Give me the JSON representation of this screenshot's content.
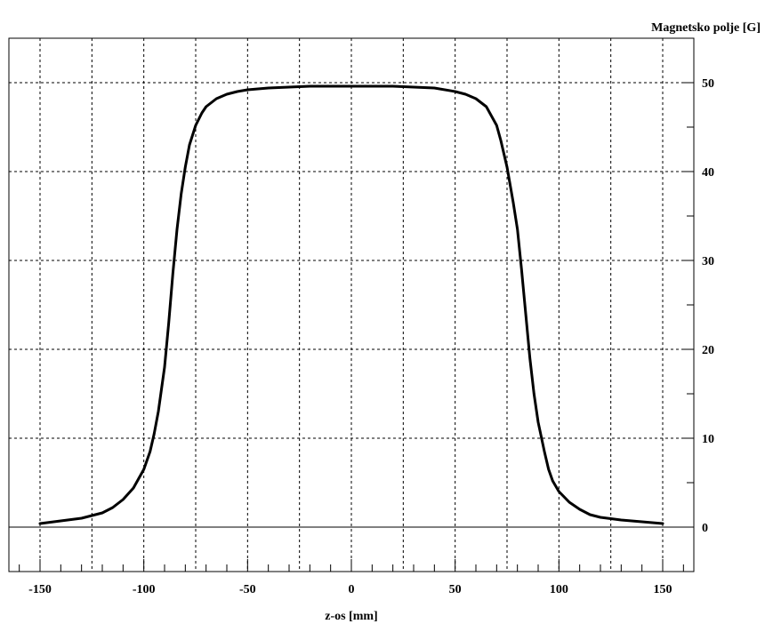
{
  "chart_data": {
    "type": "line",
    "title": "",
    "xlabel": "z-os [mm]",
    "ylabel": "Magnetsko polje [G]",
    "xlim": [
      -165,
      165
    ],
    "ylim": [
      -5,
      55
    ],
    "grid": true,
    "y_axis_side": "right",
    "x_tick_labels": [
      "-150",
      "-100",
      "-50",
      "0",
      "50",
      "100",
      "150"
    ],
    "y_tick_labels": [
      "0",
      "10",
      "20",
      "30",
      "40",
      "50"
    ],
    "series": [
      {
        "color": "#000000",
        "x": [
          -150,
          -140,
          -130,
          -120,
          -115,
          -110,
          -105,
          -100,
          -97,
          -95,
          -93,
          -90,
          -88,
          -86,
          -84,
          -82,
          -80,
          -78,
          -75,
          -72,
          -70,
          -65,
          -60,
          -55,
          -50,
          -40,
          -30,
          -20,
          -10,
          0,
          10,
          20,
          30,
          40,
          50,
          55,
          60,
          65,
          70,
          72,
          75,
          78,
          80,
          82,
          84,
          86,
          88,
          90,
          93,
          95,
          97,
          100,
          105,
          110,
          115,
          120,
          130,
          140,
          150
        ],
        "y": [
          0.4,
          0.7,
          1.0,
          1.6,
          2.2,
          3.1,
          4.4,
          6.5,
          8.5,
          10.5,
          13.0,
          18.0,
          23.0,
          28.5,
          33.5,
          37.5,
          40.5,
          43.0,
          45.2,
          46.6,
          47.3,
          48.2,
          48.7,
          49.0,
          49.2,
          49.4,
          49.5,
          49.6,
          49.6,
          49.6,
          49.6,
          49.6,
          49.5,
          49.4,
          49.0,
          48.7,
          48.2,
          47.3,
          45.2,
          43.5,
          40.5,
          36.5,
          33.5,
          29.0,
          24.0,
          19.0,
          15.0,
          11.8,
          8.5,
          6.5,
          5.2,
          4.0,
          2.8,
          2.0,
          1.4,
          1.1,
          0.8,
          0.6,
          0.4
        ]
      }
    ]
  }
}
